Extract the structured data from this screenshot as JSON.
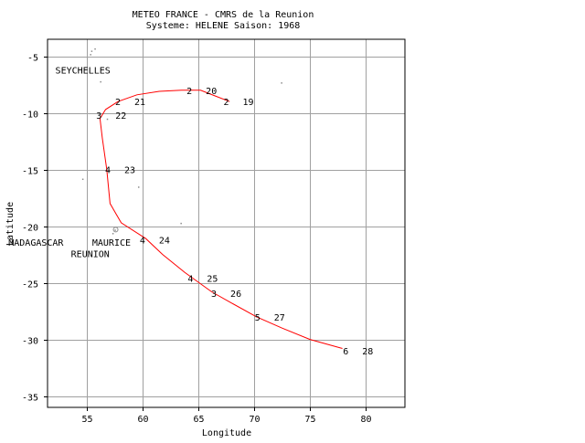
{
  "header": {
    "line1": "METEO FRANCE - CMRS de la Reunion",
    "line2": "Systeme: HELENE  Saison: 1968"
  },
  "axes": {
    "xlabel": "Longitude",
    "ylabel": "Latitude",
    "xlim": [
      51.5,
      83.5
    ],
    "ylim": [
      -36,
      -3.5
    ],
    "xticks": [
      55,
      60,
      65,
      70,
      75,
      80
    ],
    "yticks": [
      -5,
      -10,
      -15,
      -20,
      -25,
      -30,
      -35
    ],
    "grid": true
  },
  "places": [
    {
      "name": "SEYCHELLES",
      "lon": 52.2,
      "lat": -6.2
    },
    {
      "name": "MAURICE",
      "lon": 55.5,
      "lat": -21.4
    },
    {
      "name": "REUNION",
      "lon": 53.6,
      "lat": -22.4
    },
    {
      "name": "MADAGASCAR",
      "lon": 48.0,
      "lat": -21.4
    }
  ],
  "track_color": "#ff0000",
  "chart_data": {
    "type": "line",
    "series": [
      {
        "points": [
          {
            "lon": 67.8,
            "lat": -9.0
          },
          {
            "lon": 66.5,
            "lat": -8.5
          },
          {
            "lon": 65.2,
            "lat": -8.0
          },
          {
            "lon": 63.5,
            "lat": -8.0
          },
          {
            "lon": 61.5,
            "lat": -8.1
          },
          {
            "lon": 59.5,
            "lat": -8.4
          },
          {
            "lon": 57.8,
            "lat": -9.0
          },
          {
            "lon": 56.7,
            "lat": -9.7
          },
          {
            "lon": 56.2,
            "lat": -10.5
          },
          {
            "lon": 56.4,
            "lat": -12.2
          },
          {
            "lon": 56.8,
            "lat": -15.0
          },
          {
            "lon": 57.1,
            "lat": -18.0
          },
          {
            "lon": 58.1,
            "lat": -19.7
          },
          {
            "lon": 60.3,
            "lat": -21.1
          },
          {
            "lon": 61.8,
            "lat": -22.5
          },
          {
            "lon": 63.8,
            "lat": -24.1
          },
          {
            "lon": 66.2,
            "lat": -25.8
          },
          {
            "lon": 68.0,
            "lat": -26.8
          },
          {
            "lon": 70.2,
            "lat": -28.0
          },
          {
            "lon": 72.5,
            "lat": -29.0
          },
          {
            "lon": 75.0,
            "lat": -30.0
          },
          {
            "lon": 77.9,
            "lat": -30.8
          }
        ]
      }
    ],
    "positions": [
      {
        "lon": 67.5,
        "lat": -9.0,
        "intensity": "2",
        "day": "19"
      },
      {
        "lon": 64.2,
        "lat": -8.0,
        "intensity": "2",
        "day": "20"
      },
      {
        "lon": 57.8,
        "lat": -9.0,
        "intensity": "2",
        "day": "21"
      },
      {
        "lon": 56.1,
        "lat": -10.2,
        "intensity": "3",
        "day": "22"
      },
      {
        "lon": 56.9,
        "lat": -15.0,
        "intensity": "4",
        "day": "23"
      },
      {
        "lon": 60.0,
        "lat": -21.2,
        "intensity": "4",
        "day": "24"
      },
      {
        "lon": 64.3,
        "lat": -24.6,
        "intensity": "4",
        "day": "25"
      },
      {
        "lon": 66.4,
        "lat": -25.9,
        "intensity": "3",
        "day": "26"
      },
      {
        "lon": 70.3,
        "lat": -28.0,
        "intensity": "5",
        "day": "27"
      },
      {
        "lon": 78.2,
        "lat": -31.0,
        "intensity": "6",
        "day": "28"
      }
    ]
  }
}
